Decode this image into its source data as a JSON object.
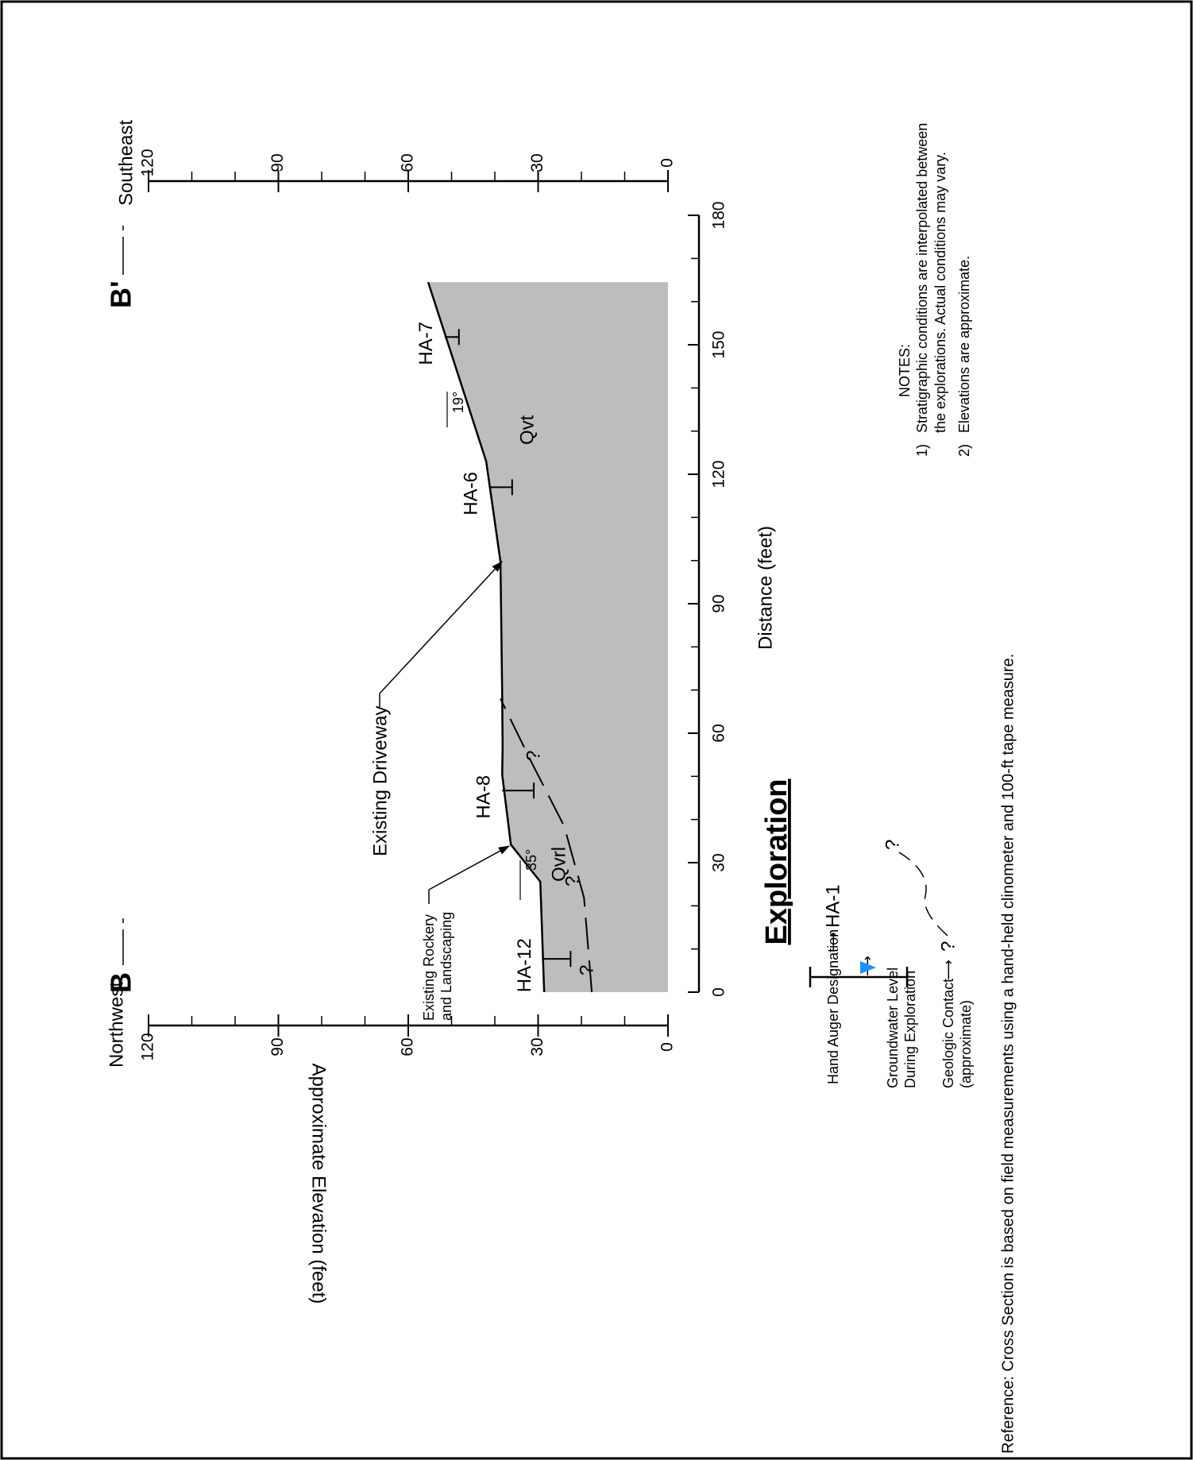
{
  "section": {
    "start": "B",
    "end": "B'",
    "left_direction": "Northwest",
    "right_direction": "Southeast"
  },
  "axes": {
    "distance": {
      "label": "Distance (feet)",
      "ticks": [
        0,
        30,
        60,
        90,
        120,
        150,
        180
      ]
    },
    "elevation": {
      "label": "Approximate Elevation (feet)",
      "ticks": [
        0,
        30,
        60,
        90,
        120
      ]
    }
  },
  "ground_surface": {
    "distance": [
      0,
      25.6,
      34.2,
      50.4,
      56.9,
      68.8,
      99.8,
      123,
      164.5
    ],
    "elevation": [
      28.6,
      29.5,
      36.3,
      38.3,
      38.2,
      38.3,
      38.7,
      42,
      55.4
    ]
  },
  "geologic_contact": {
    "distance": [
      0,
      21.9,
      38.5,
      53,
      68
    ],
    "elevation": [
      17.6,
      19.4,
      24,
      31.4,
      38.7
    ]
  },
  "units": [
    "Qvrl",
    "Qvt"
  ],
  "explorations": [
    {
      "label": "HA-12",
      "distance": 7.7,
      "top": 28.9,
      "bottom": 22.5
    },
    {
      "label": "HA-8",
      "distance": 46.7,
      "top": 38.3,
      "bottom": 31
    },
    {
      "label": "HA-6",
      "distance": 117,
      "top": 41.3,
      "bottom": 36
    },
    {
      "label": "HA-7",
      "distance": 151.8,
      "top": 51.6,
      "bottom": 48.3
    }
  ],
  "annotations": {
    "driveway": "Existing Driveway",
    "rockery": [
      "Existing Rockery",
      "and Landscaping"
    ],
    "slopes": [
      "35°",
      "19°"
    ],
    "question": "?"
  },
  "legend": {
    "title": "Exploration",
    "hand_auger": "Hand Auger Designation",
    "hand_auger_example": "HA-1",
    "groundwater": [
      "Groundwater Level",
      "During Exploration"
    ],
    "contact": [
      "Geologic Contact",
      "(approximate)"
    ]
  },
  "notes": {
    "title": "NOTES:",
    "items": [
      {
        "number": "1)",
        "lines": [
          "Stratigraphic conditions are interpolated between",
          "the explorations.  Actual conditions may vary."
        ]
      },
      {
        "number": "2)",
        "lines": [
          "Elevations are approximate."
        ]
      }
    ]
  },
  "reference": "Reference:  Cross Section is based on field measurements using a hand-held clinometer and 100-ft tape measure."
}
